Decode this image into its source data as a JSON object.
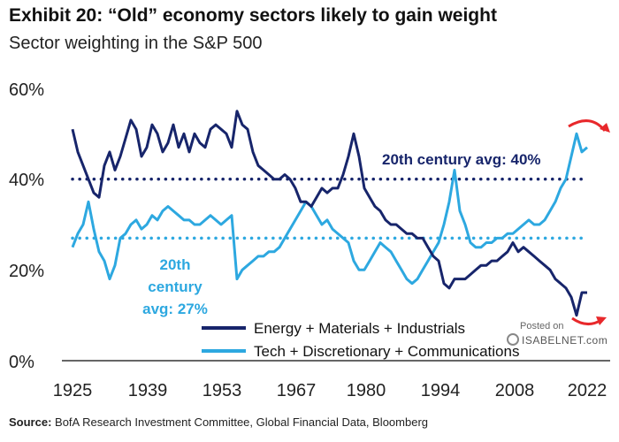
{
  "chart_data": {
    "type": "line",
    "title": "Exhibit 20: “Old” economy sectors likely to gain weight",
    "subtitle": "Sector weighting in the S&P 500",
    "xlim": [
      1925,
      2022
    ],
    "ylim": [
      0,
      60
    ],
    "x_ticks": [
      "1925",
      "1939",
      "1953",
      "1967",
      "1980",
      "1994",
      "2008",
      "2022"
    ],
    "y_ticks": [
      "0%",
      "20%",
      "40%",
      "60%"
    ],
    "series": [
      {
        "name": "Energy + Materials + Industrials",
        "color": "#17256b",
        "x": [
          1925,
          1926,
          1927,
          1928,
          1929,
          1930,
          1931,
          1932,
          1933,
          1934,
          1935,
          1936,
          1937,
          1938,
          1939,
          1940,
          1941,
          1942,
          1943,
          1944,
          1945,
          1946,
          1947,
          1948,
          1949,
          1950,
          1951,
          1952,
          1953,
          1954,
          1955,
          1956,
          1957,
          1958,
          1959,
          1960,
          1961,
          1962,
          1963,
          1964,
          1965,
          1966,
          1967,
          1968,
          1969,
          1970,
          1971,
          1972,
          1973,
          1974,
          1975,
          1976,
          1977,
          1978,
          1979,
          1980,
          1981,
          1982,
          1983,
          1984,
          1985,
          1986,
          1987,
          1988,
          1989,
          1990,
          1991,
          1992,
          1993,
          1994,
          1995,
          1996,
          1997,
          1998,
          1999,
          2000,
          2001,
          2002,
          2003,
          2004,
          2005,
          2006,
          2007,
          2008,
          2009,
          2010,
          2011,
          2012,
          2013,
          2014,
          2015,
          2016,
          2017,
          2018,
          2019,
          2020,
          2021,
          2022
        ],
        "values": [
          51,
          46,
          43,
          40,
          37,
          36,
          43,
          46,
          42,
          45,
          49,
          53,
          51,
          45,
          47,
          52,
          50,
          46,
          48,
          52,
          47,
          50,
          46,
          50,
          48,
          47,
          51,
          52,
          51,
          50,
          47,
          55,
          52,
          51,
          46,
          43,
          42,
          41,
          40,
          40,
          41,
          40,
          38,
          35,
          35,
          34,
          36,
          38,
          37,
          38,
          38,
          41,
          45,
          50,
          45,
          38,
          36,
          34,
          33,
          31,
          30,
          30,
          29,
          28,
          28,
          27,
          27,
          25,
          23,
          22,
          17,
          16,
          18,
          18,
          18,
          19,
          20,
          21,
          21,
          22,
          22,
          23,
          24,
          26,
          24,
          25,
          24,
          23,
          22,
          21,
          20,
          18,
          17,
          16,
          14,
          10,
          15,
          15
        ]
      },
      {
        "name": "Tech + Discretionary + Communications",
        "color": "#2da8e0",
        "x": [
          1925,
          1926,
          1927,
          1928,
          1929,
          1930,
          1931,
          1932,
          1933,
          1934,
          1935,
          1936,
          1937,
          1938,
          1939,
          1940,
          1941,
          1942,
          1943,
          1944,
          1945,
          1946,
          1947,
          1948,
          1949,
          1950,
          1951,
          1952,
          1953,
          1954,
          1955,
          1956,
          1957,
          1958,
          1959,
          1960,
          1961,
          1962,
          1963,
          1964,
          1965,
          1966,
          1967,
          1968,
          1969,
          1970,
          1971,
          1972,
          1973,
          1974,
          1975,
          1976,
          1977,
          1978,
          1979,
          1980,
          1981,
          1982,
          1983,
          1984,
          1985,
          1986,
          1987,
          1988,
          1989,
          1990,
          1991,
          1992,
          1993,
          1994,
          1995,
          1996,
          1997,
          1998,
          1999,
          2000,
          2001,
          2002,
          2003,
          2004,
          2005,
          2006,
          2007,
          2008,
          2009,
          2010,
          2011,
          2012,
          2013,
          2014,
          2015,
          2016,
          2017,
          2018,
          2019,
          2020,
          2021,
          2022
        ],
        "values": [
          25,
          28,
          30,
          35,
          29,
          24,
          22,
          18,
          21,
          27,
          28,
          30,
          31,
          29,
          30,
          32,
          31,
          33,
          34,
          33,
          32,
          31,
          31,
          30,
          30,
          31,
          32,
          31,
          30,
          31,
          32,
          18,
          20,
          21,
          22,
          23,
          23,
          24,
          24,
          25,
          27,
          29,
          31,
          33,
          35,
          34,
          32,
          30,
          31,
          29,
          28,
          27,
          26,
          22,
          20,
          20,
          22,
          24,
          26,
          25,
          24,
          22,
          20,
          18,
          17,
          18,
          20,
          22,
          24,
          26,
          30,
          35,
          42,
          33,
          30,
          26,
          25,
          25,
          26,
          26,
          27,
          27,
          28,
          28,
          29,
          30,
          31,
          30,
          30,
          31,
          33,
          35,
          38,
          40,
          45,
          50,
          46,
          47
        ]
      }
    ],
    "reference_lines": [
      {
        "label": "20th century avg: 40%",
        "value": 40,
        "color": "#17256b"
      },
      {
        "label_lines": [
          "20th",
          "century",
          "avg: 27%"
        ],
        "value": 27,
        "color": "#2da8e0"
      }
    ],
    "legend_position": "bottom-right"
  },
  "source_label": "Source:",
  "source_text": "BofA Research Investment Committee, Global Financial Data, Bloomberg",
  "watermark": {
    "line1": "Posted on",
    "line2": "ISABELNET.com"
  },
  "colors": {
    "arrow": "#e8282b"
  }
}
